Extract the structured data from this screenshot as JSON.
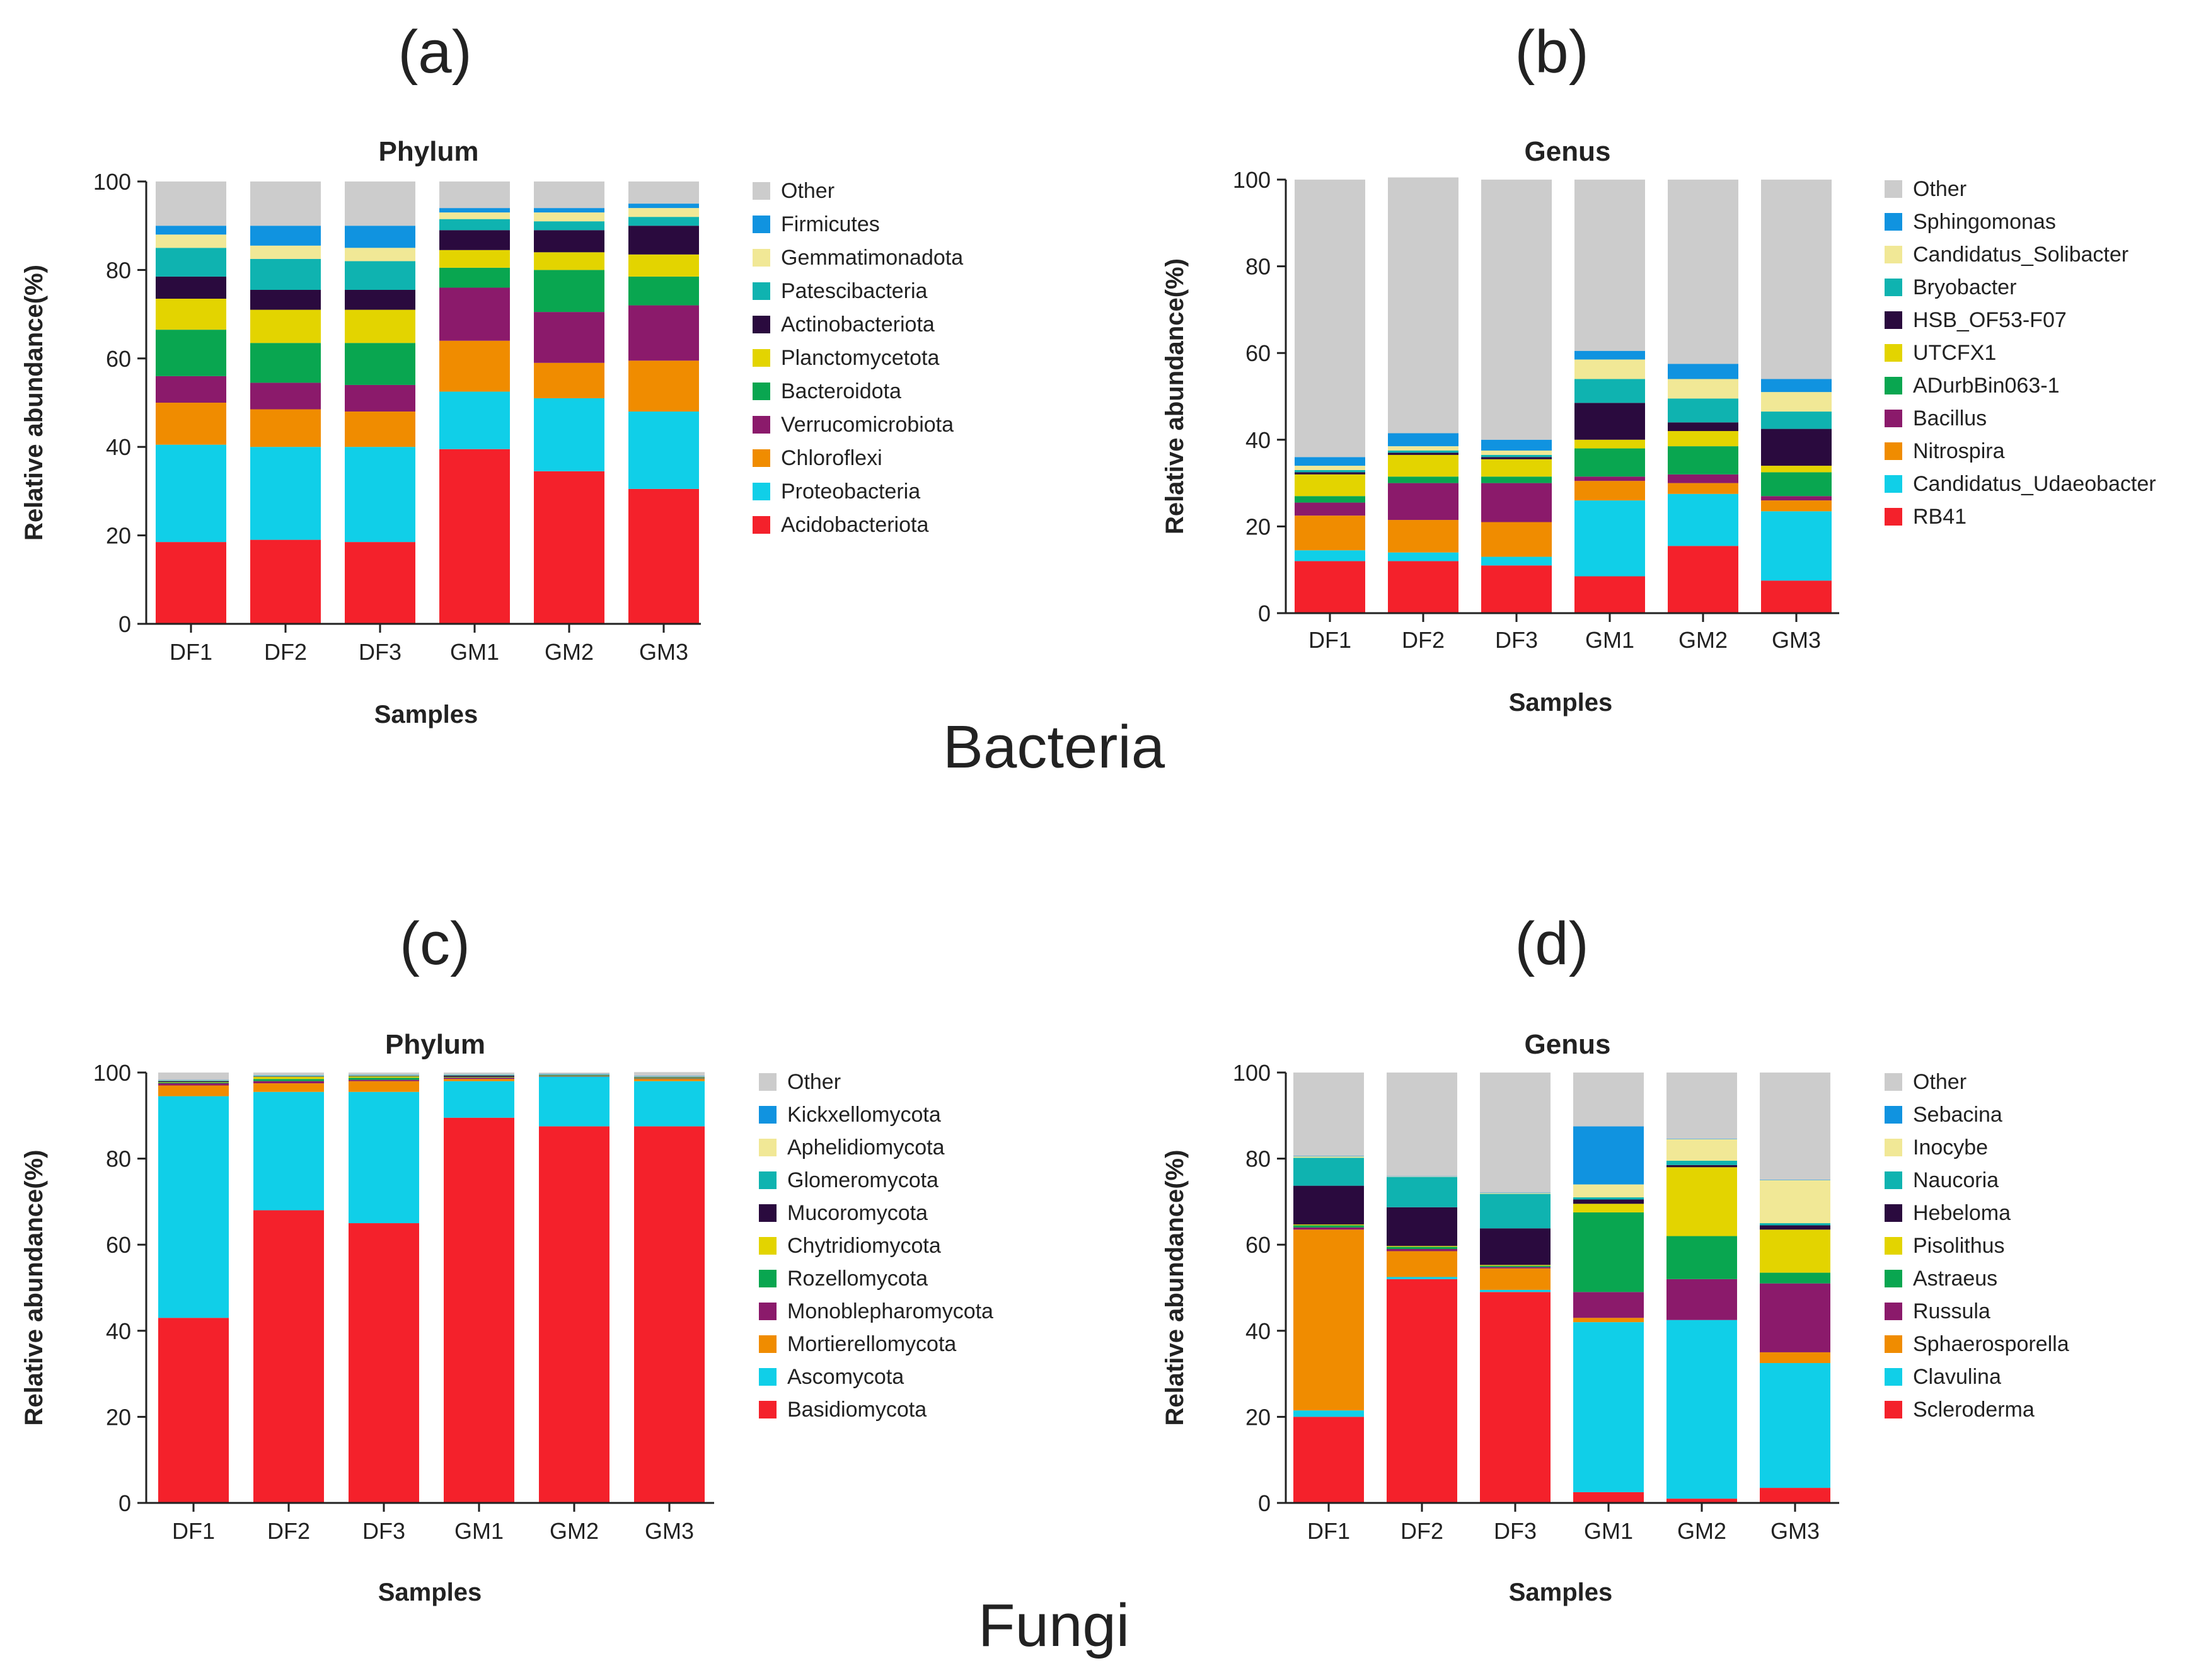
{
  "group_labels": {
    "bacteria": "Bacteria",
    "fungi": "Fungi"
  },
  "chart_data": [
    {
      "panel": "(a)",
      "type": "bar",
      "stacked": true,
      "title": "Phylum",
      "xlabel": "Samples",
      "ylabel": "Relative abundance(%)",
      "ylim": [
        0,
        100
      ],
      "yticks": [
        "0",
        "20",
        "40",
        "60",
        "80",
        "100"
      ],
      "categories": [
        "DF1",
        "DF2",
        "DF3",
        "GM1",
        "GM2",
        "GM3"
      ],
      "series": [
        {
          "name": "Acidobacteriota",
          "color": "#f4212b",
          "values": [
            18.5,
            19,
            18.5,
            39.5,
            34.5,
            30.5
          ]
        },
        {
          "name": "Proteobacteria",
          "color": "#10cfe8",
          "values": [
            22,
            21,
            21.5,
            13,
            16.5,
            17.5
          ]
        },
        {
          "name": "Chloroflexi",
          "color": "#f08c00",
          "values": [
            9.5,
            8.5,
            8,
            11.5,
            8,
            11.5
          ]
        },
        {
          "name": "Verrucomicrobiota",
          "color": "#8b1a6b",
          "values": [
            6,
            6,
            6,
            12,
            11.5,
            12.5
          ]
        },
        {
          "name": "Bacteroidota",
          "color": "#09a650",
          "values": [
            10.5,
            9,
            9.5,
            4.5,
            9.5,
            6.5
          ]
        },
        {
          "name": "Planctomycetota",
          "color": "#e3d400",
          "values": [
            7,
            7.5,
            7.5,
            4,
            4,
            5
          ]
        },
        {
          "name": "Actinobacteriota",
          "color": "#2a0a3e",
          "values": [
            5,
            4.5,
            4.5,
            4.5,
            5,
            6.5
          ]
        },
        {
          "name": "Patescibacteria",
          "color": "#0fb3b0",
          "values": [
            6.5,
            7,
            6.5,
            2.5,
            2,
            2
          ]
        },
        {
          "name": "Gemmatimonadota",
          "color": "#f1e896",
          "values": [
            3,
            3,
            3,
            1.5,
            2,
            2
          ]
        },
        {
          "name": "Firmicutes",
          "color": "#1093e0",
          "values": [
            2,
            4.5,
            5,
            1,
            1,
            1
          ]
        },
        {
          "name": "Other",
          "color": "#cccccc",
          "values": [
            10,
            10,
            10,
            6,
            6,
            5
          ]
        }
      ]
    },
    {
      "panel": "(b)",
      "type": "bar",
      "stacked": true,
      "title": "Genus",
      "xlabel": "Samples",
      "ylabel": "Relative abundance(%)",
      "ylim": [
        0,
        100
      ],
      "yticks": [
        "0",
        "20",
        "40",
        "60",
        "80",
        "100"
      ],
      "categories": [
        "DF1",
        "DF2",
        "DF3",
        "GM1",
        "GM2",
        "GM3"
      ],
      "series": [
        {
          "name": "RB41",
          "color": "#f4212b",
          "values": [
            12,
            12,
            11,
            8.5,
            15.5,
            7.5
          ]
        },
        {
          "name": "Candidatus_Udaeobacter",
          "color": "#10cfe8",
          "values": [
            2.5,
            2,
            2,
            17.5,
            12,
            16
          ]
        },
        {
          "name": "Nitrospira",
          "color": "#f08c00",
          "values": [
            8,
            7.5,
            8,
            4.5,
            2.5,
            2.5
          ]
        },
        {
          "name": "Bacillus",
          "color": "#8b1a6b",
          "values": [
            3,
            8.5,
            9,
            1,
            2,
            1
          ]
        },
        {
          "name": "ADurbBin063-1",
          "color": "#09a650",
          "values": [
            1.5,
            1.5,
            1.5,
            6.5,
            6.5,
            5.5
          ]
        },
        {
          "name": "UTCFX1",
          "color": "#e3d400",
          "values": [
            5,
            5,
            4,
            2,
            3.5,
            1.5
          ]
        },
        {
          "name": "HSB_OF53-F07",
          "color": "#2a0a3e",
          "values": [
            0.5,
            0.5,
            0.5,
            8.5,
            2,
            8.5
          ]
        },
        {
          "name": "Bryobacter",
          "color": "#0fb3b0",
          "values": [
            0.5,
            0.5,
            0.5,
            5.5,
            5.5,
            4
          ]
        },
        {
          "name": "Candidatus_Solibacter",
          "color": "#f1e896",
          "values": [
            1,
            1,
            1,
            4.5,
            4.5,
            4.5
          ]
        },
        {
          "name": "Sphingomonas",
          "color": "#1093e0",
          "values": [
            2,
            3,
            2.5,
            2,
            3.5,
            3
          ]
        },
        {
          "name": "Other",
          "color": "#cccccc",
          "values": [
            64,
            59,
            60,
            39.5,
            42.5,
            46
          ]
        }
      ]
    },
    {
      "panel": "(c)",
      "type": "bar",
      "stacked": true,
      "title": "Phylum",
      "xlabel": "Samples",
      "ylabel": "Relative abundance(%)",
      "ylim": [
        0,
        100
      ],
      "yticks": [
        "0",
        "20",
        "40",
        "60",
        "80",
        "100"
      ],
      "categories": [
        "DF1",
        "DF2",
        "DF3",
        "GM1",
        "GM2",
        "GM3"
      ],
      "series": [
        {
          "name": "Basidiomycota",
          "color": "#f4212b",
          "values": [
            43,
            68,
            65,
            89.5,
            87.5,
            87.5
          ]
        },
        {
          "name": "Ascomycota",
          "color": "#10cfe8",
          "values": [
            51.5,
            27.5,
            30.5,
            8.5,
            11.5,
            10.5
          ]
        },
        {
          "name": "Mortierellomycota",
          "color": "#f08c00",
          "values": [
            2.5,
            2,
            2.5,
            0.5,
            0,
            0.5
          ]
        },
        {
          "name": "Monoblepharomycota",
          "color": "#8b1a6b",
          "values": [
            0.5,
            0.5,
            0.3,
            0.3,
            0.1,
            0.1
          ]
        },
        {
          "name": "Rozellomycota",
          "color": "#09a650",
          "values": [
            0.2,
            0.5,
            0.5,
            0.1,
            0.1,
            0.1
          ]
        },
        {
          "name": "Chytridiomycota",
          "color": "#e3d400",
          "values": [
            0.1,
            0.5,
            0.3,
            0.1,
            0.1,
            0.1
          ]
        },
        {
          "name": "Mucoromycota",
          "color": "#2a0a3e",
          "values": [
            0.2,
            0.1,
            0.1,
            0.3,
            0.1,
            0.1
          ]
        },
        {
          "name": "Glomeromycota",
          "color": "#0fb3b0",
          "values": [
            0.1,
            0.1,
            0.1,
            0.1,
            0.1,
            0.1
          ]
        },
        {
          "name": "Aphelidiomycota",
          "color": "#f1e896",
          "values": [
            0.1,
            0.1,
            0.1,
            0.1,
            0.1,
            0.1
          ]
        },
        {
          "name": "Kickxellomycota",
          "color": "#1093e0",
          "values": [
            0.1,
            0.1,
            0.1,
            0.1,
            0.1,
            0.1
          ]
        },
        {
          "name": "Other",
          "color": "#cccccc",
          "values": [
            1.7,
            0.6,
            0.5,
            0.4,
            0.3,
            0.9
          ]
        }
      ]
    },
    {
      "panel": "(d)",
      "type": "bar",
      "stacked": true,
      "title": "Genus",
      "xlabel": "Samples",
      "ylabel": "Relative abundance(%)",
      "ylim": [
        0,
        100
      ],
      "yticks": [
        "0",
        "20",
        "40",
        "60",
        "80",
        "100"
      ],
      "categories": [
        "DF1",
        "DF2",
        "DF3",
        "GM1",
        "GM2",
        "GM3"
      ],
      "series": [
        {
          "name": "Scleroderma",
          "color": "#f4212b",
          "values": [
            20,
            52,
            49,
            2.5,
            1,
            3.5
          ]
        },
        {
          "name": "Clavulina",
          "color": "#10cfe8",
          "values": [
            1.5,
            0.5,
            0.5,
            39.5,
            41.5,
            29
          ]
        },
        {
          "name": "Sphaerosporella",
          "color": "#f08c00",
          "values": [
            42,
            6,
            5,
            1,
            0,
            2.5
          ]
        },
        {
          "name": "Russula",
          "color": "#8b1a6b",
          "values": [
            0.5,
            0.5,
            0.3,
            6,
            9.5,
            16
          ]
        },
        {
          "name": "Astraeus",
          "color": "#09a650",
          "values": [
            0.5,
            0.5,
            0.3,
            18.5,
            10,
            2.5
          ]
        },
        {
          "name": "Pisolithus",
          "color": "#e3d400",
          "values": [
            0.2,
            0.2,
            0.2,
            2,
            16,
            10
          ]
        },
        {
          "name": "Hebeloma",
          "color": "#2a0a3e",
          "values": [
            9,
            9,
            8.5,
            1,
            0.5,
            1
          ]
        },
        {
          "name": "Naucoria",
          "color": "#0fb3b0",
          "values": [
            6.5,
            7,
            8,
            0.5,
            1,
            0.5
          ]
        },
        {
          "name": "Inocybe",
          "color": "#f1e896",
          "values": [
            0.3,
            0.1,
            0.2,
            3,
            5,
            10
          ]
        },
        {
          "name": "Sebacina",
          "color": "#1093e0",
          "values": [
            0.1,
            0.1,
            0.1,
            13.5,
            0.1,
            0.1
          ]
        },
        {
          "name": "Other",
          "color": "#cccccc",
          "values": [
            19.4,
            24.1,
            27.9,
            12.5,
            15.4,
            24.9
          ]
        }
      ]
    }
  ]
}
